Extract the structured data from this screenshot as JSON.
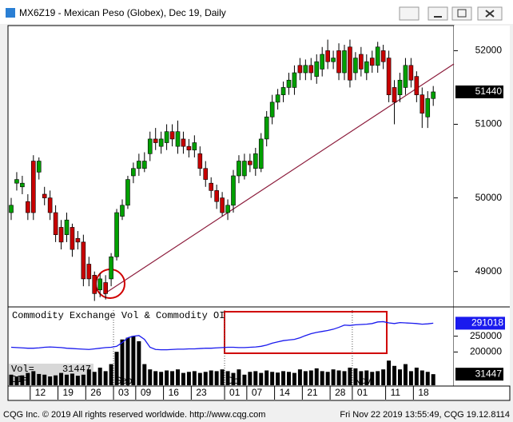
{
  "chart_data": {
    "type": "candlestick",
    "title": "MX6Z19 - Mexican Peso (Globex), Dec 19, Daily",
    "categories": [
      null,
      null,
      null,
      null,
      "12",
      null,
      null,
      null,
      null,
      "19",
      null,
      null,
      null,
      null,
      "26",
      null,
      null,
      null,
      null,
      "03",
      null,
      null,
      null,
      "09",
      null,
      null,
      null,
      null,
      "16",
      null,
      null,
      null,
      null,
      "23",
      null,
      null,
      null,
      null,
      null,
      "01",
      null,
      null,
      null,
      "07",
      null,
      null,
      null,
      null,
      "14",
      null,
      null,
      null,
      null,
      "21",
      null,
      null,
      null,
      null,
      "28",
      null,
      null,
      null,
      "01",
      null,
      null,
      null,
      null,
      null,
      "11",
      null,
      null,
      null,
      null,
      "18",
      null,
      null,
      null
    ],
    "month_categories": [
      null,
      null,
      null,
      null,
      null,
      null,
      null,
      null,
      null,
      null,
      null,
      null,
      null,
      null,
      null,
      null,
      null,
      null,
      null,
      "Sep",
      null,
      null,
      null,
      null,
      null,
      null,
      null,
      null,
      null,
      null,
      null,
      null,
      null,
      null,
      null,
      null,
      null,
      null,
      null,
      "Oct",
      null,
      null,
      null,
      null,
      null,
      null,
      null,
      null,
      null,
      null,
      null,
      null,
      null,
      null,
      null,
      null,
      null,
      null,
      null,
      null,
      null,
      null,
      "Nov",
      null,
      null,
      null,
      null,
      null,
      null,
      null,
      null,
      null,
      null,
      null,
      null,
      null,
      null
    ],
    "open": [
      49800,
      50200,
      50150,
      49950,
      50500,
      50350,
      50050,
      50000,
      49800,
      49600,
      49500,
      49600,
      49450,
      49400,
      49100,
      48950,
      48750,
      48850,
      48900,
      49200,
      49750,
      49900,
      50300,
      50400,
      50400,
      50600,
      50800,
      50700,
      50750,
      50900,
      50700,
      50800,
      50700,
      50650,
      50600,
      50400,
      50200,
      50100,
      50000,
      49800,
      49900,
      50300,
      50300,
      50500,
      50400,
      50400,
      50800,
      51100,
      51300,
      51400,
      51500,
      51500,
      51800,
      51700,
      51800,
      51650,
      51750,
      52000,
      51850,
      52000,
      51700,
      52050,
      51700,
      51950,
      51700,
      51900,
      51800,
      52000,
      51900,
      51500,
      51400,
      51500,
      51800,
      51650,
      51400,
      51100,
      51350
    ],
    "high": [
      50000,
      50350,
      50300,
      50050,
      50580,
      50550,
      50150,
      50100,
      49900,
      49700,
      49800,
      49650,
      49550,
      49500,
      49200,
      49000,
      48980,
      48950,
      49250,
      49850,
      49980,
      50300,
      50480,
      50600,
      50620,
      50900,
      50950,
      50900,
      51000,
      51000,
      51050,
      50900,
      50800,
      50850,
      50700,
      50500,
      50280,
      50180,
      50080,
      49980,
      50380,
      50580,
      50600,
      50600,
      50680,
      50880,
      51180,
      51400,
      51480,
      51580,
      51700,
      51800,
      51900,
      51880,
      51900,
      51950,
      52050,
      52150,
      52000,
      52100,
      52080,
      52150,
      51980,
      52050,
      51950,
      52000,
      52120,
      52080,
      52000,
      51600,
      51700,
      51900,
      51900,
      51720,
      51500,
      51450,
      51520
    ],
    "low": [
      49700,
      50100,
      50050,
      49700,
      49700,
      50250,
      49900,
      49700,
      49400,
      49300,
      49400,
      49200,
      49300,
      48800,
      48800,
      48600,
      48650,
      48620,
      48800,
      49150,
      49700,
      49850,
      50200,
      50300,
      50350,
      50500,
      50650,
      50600,
      50650,
      50700,
      50600,
      50600,
      50550,
      50550,
      50300,
      50150,
      50000,
      49850,
      49750,
      49700,
      49800,
      50200,
      50250,
      50350,
      50300,
      50350,
      50700,
      51000,
      51200,
      51300,
      51400,
      51400,
      51600,
      51600,
      51600,
      51550,
      51650,
      51750,
      51750,
      51600,
      51600,
      51500,
      51600,
      51650,
      51600,
      51700,
      51700,
      51750,
      51300,
      51000,
      51300,
      51400,
      51500,
      51300,
      50950,
      50950,
      51250
    ],
    "close": [
      49900,
      50250,
      50200,
      49800,
      49800,
      50500,
      50000,
      49800,
      49500,
      49400,
      49700,
      49300,
      49400,
      48900,
      48900,
      48700,
      48900,
      48700,
      49200,
      49800,
      49900,
      50250,
      50400,
      50500,
      50500,
      50800,
      50750,
      50800,
      50900,
      50800,
      50900,
      50700,
      50650,
      50750,
      50400,
      50250,
      50100,
      49950,
      49800,
      49900,
      50300,
      50500,
      50500,
      50450,
      50600,
      50800,
      51100,
      51300,
      51400,
      51500,
      51600,
      51700,
      51700,
      51800,
      51700,
      51850,
      51950,
      51850,
      51900,
      51700,
      52000,
      51600,
      51900,
      51750,
      51850,
      51800,
      52050,
      51850,
      51400,
      51300,
      51600,
      51800,
      51600,
      51400,
      51150,
      51350,
      51440
    ],
    "up_color": "#00a000",
    "down_color": "#c80000",
    "ylim": [
      48530,
      52330
    ],
    "yticks": [
      49000,
      50000,
      51000,
      52000
    ],
    "lower_title": "Commodity Exchange Vol & Commodity OI",
    "volume": {
      "color": "#000000",
      "lim": [
        0,
        218000
      ],
      "values": [
        30000,
        25000,
        28000,
        35000,
        40000,
        32000,
        30000,
        25000,
        28000,
        35000,
        30000,
        33000,
        27000,
        30000,
        45000,
        38000,
        50000,
        40000,
        60000,
        95000,
        130000,
        135000,
        140000,
        125000,
        60000,
        45000,
        40000,
        38000,
        42000,
        40000,
        45000,
        35000,
        38000,
        40000,
        35000,
        38000,
        42000,
        40000,
        45000,
        40000,
        35000,
        45000,
        30000,
        38000,
        40000,
        35000,
        42000,
        38000,
        36000,
        40000,
        38000,
        35000,
        45000,
        40000,
        42000,
        48000,
        40000,
        38000,
        45000,
        42000,
        40000,
        50000,
        48000,
        40000,
        42000,
        38000,
        40000,
        45000,
        70000,
        55000,
        45000,
        60000,
        40000,
        50000,
        42000,
        38000,
        31447
      ]
    },
    "open_interest": {
      "color": "#1a1aee",
      "values": [
        215000,
        214000,
        213000,
        212000,
        212000,
        213000,
        215000,
        216000,
        215000,
        214000,
        212000,
        211000,
        210000,
        209000,
        208000,
        210000,
        212000,
        214000,
        215000,
        218000,
        230000,
        245000,
        250000,
        252000,
        240000,
        215000,
        208000,
        207000,
        207000,
        208000,
        209000,
        209000,
        210000,
        210000,
        211000,
        212000,
        212000,
        213000,
        214000,
        215000,
        215000,
        214000,
        214000,
        215000,
        216000,
        218000,
        222000,
        228000,
        232000,
        236000,
        238000,
        240000,
        245000,
        252000,
        258000,
        262000,
        265000,
        268000,
        272000,
        278000,
        285000,
        284000,
        286000,
        287000,
        288000,
        290000,
        295000,
        296000,
        292000,
        290000,
        293000,
        292000,
        291000,
        290000,
        288000,
        289000,
        291018
      ]
    },
    "y2lim": [
      95000,
      337500
    ],
    "y2ticks": [
      200000,
      250000
    ],
    "vol_label": "Vol=",
    "oi_label": "OI=",
    "footer_left": "CQG Inc. © 2019 All rights reserved worldwide. http://www.cqg.com",
    "footer_right": "Fri Nov 22 2019 13:55:49, CQG 19.12.8114"
  }
}
